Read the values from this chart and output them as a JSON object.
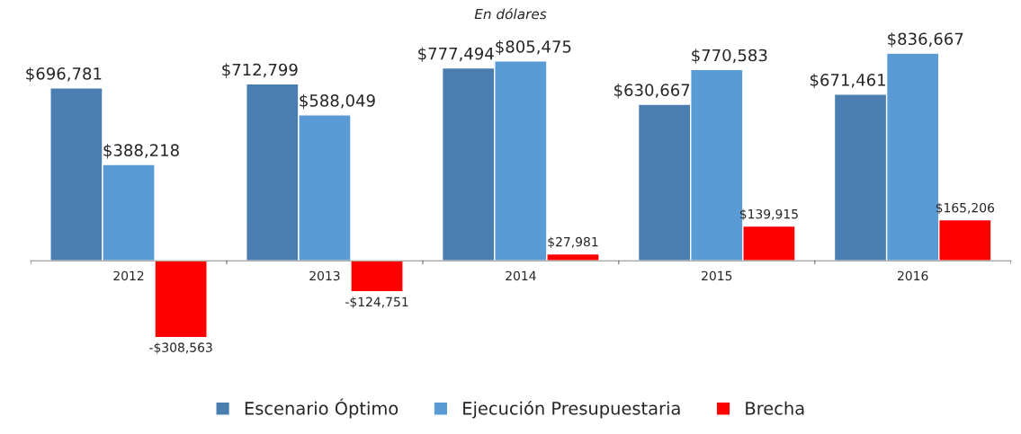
{
  "chart_data": {
    "type": "bar",
    "subtitle": "En dólares",
    "categories": [
      "2012",
      "2013",
      "2014",
      "2015",
      "2016"
    ],
    "series": [
      {
        "name": "Escenario Óptimo",
        "color": "#4a7eb0",
        "values": [
          696781,
          712799,
          777494,
          630667,
          671461
        ],
        "value_labels": [
          "$696,781",
          "$712,799",
          "$777,494",
          "$630,667",
          "$671,461"
        ]
      },
      {
        "name": "Ejecución Presupuestaria",
        "color": "#5b9bd5",
        "values": [
          388218,
          588049,
          805475,
          770583,
          836667
        ],
        "value_labels": [
          "$388,218",
          "$588,049",
          "$805,475",
          "$770,583",
          "$836,667"
        ]
      },
      {
        "name": "Brecha",
        "color": "#ff0000",
        "values": [
          -308563,
          -124751,
          27981,
          139915,
          165206
        ],
        "value_labels": [
          "-$308,563",
          "-$124,751",
          "$27,981",
          "$139,915",
          "$165,206"
        ]
      }
    ],
    "legend": "bottom",
    "grid": false
  }
}
